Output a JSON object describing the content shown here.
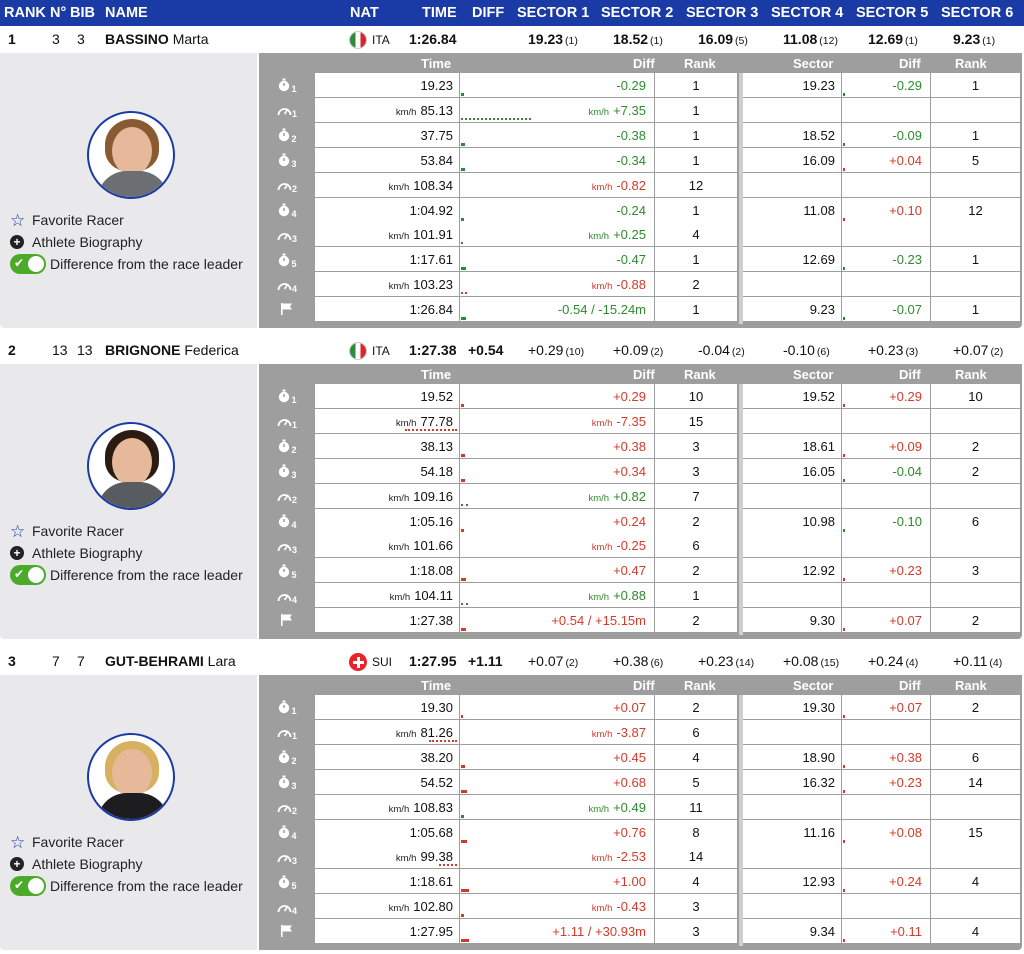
{
  "header": {
    "rank": "RANK",
    "no": "N°",
    "bib": "BIB",
    "name": "NAME",
    "nat": "NAT",
    "time": "TIME",
    "diff": "DIFF",
    "s1": "SECTOR 1",
    "s2": "SECTOR 2",
    "s3": "SECTOR 3",
    "s4": "SECTOR 4",
    "s5": "SECTOR 5",
    "s6": "SECTOR 6"
  },
  "detail_header": {
    "time": "Time",
    "diff": "Diff",
    "rank": "Rank",
    "sector": "Sector",
    "diff2": "Diff",
    "rank2": "Rank"
  },
  "links": {
    "favorite": "Favorite Racer",
    "bio": "Athlete Biography",
    "diff_toggle": "Difference from the race leader"
  },
  "units": {
    "speed": "km/h"
  },
  "colors": {
    "header_bg": "#1a3aa5",
    "positive": "#2e8b2e",
    "negative": "#d43a2a",
    "toggle": "#4caa2a"
  },
  "athletes": [
    {
      "rank": "1",
      "no": "3",
      "bib": "3",
      "last": "BASSINO",
      "first": "Marta",
      "nat": "ITA",
      "flag": "ita",
      "time": "1:26.84",
      "diff": "",
      "sectors": [
        {
          "v": "19.23",
          "r": "(1)"
        },
        {
          "v": "18.52",
          "r": "(1)"
        },
        {
          "v": "16.09",
          "r": "(5)"
        },
        {
          "v": "11.08",
          "r": "(12)"
        },
        {
          "v": "12.69",
          "r": "(1)"
        },
        {
          "v": "9.23",
          "r": "(1)"
        }
      ],
      "photo": {
        "hair": "#8a5a32",
        "body": "#6b6e73"
      },
      "rows": [
        {
          "icon": "stopwatch",
          "sub": "1",
          "time": "19.23",
          "diff": "-0.29",
          "rank": "1",
          "sector": "19.23",
          "sdiff": "-0.29",
          "srank": "1",
          "bar": "g",
          "bw": 3
        },
        {
          "icon": "speed",
          "sub": "1",
          "time": "85.13",
          "diff": "+7.35",
          "rank": "1",
          "speed": true,
          "bar": "g",
          "bw": 70,
          "dotted": true
        },
        {
          "icon": "stopwatch",
          "sub": "2",
          "time": "37.75",
          "diff": "-0.38",
          "rank": "1",
          "sector": "18.52",
          "sdiff": "-0.09",
          "srank": "1",
          "bar": "g",
          "bw": 4
        },
        {
          "icon": "stopwatch",
          "sub": "3",
          "time": "53.84",
          "diff": "-0.34",
          "rank": "1",
          "sector": "16.09",
          "sdiff": "+0.04",
          "srank": "5",
          "bar": "g",
          "bw": 4
        },
        {
          "icon": "speed",
          "sub": "2",
          "time": "108.34",
          "diff": "-0.82",
          "rank": "12",
          "speed": true,
          "bar": "r",
          "bw": 0
        },
        {
          "icon": "stopwatch",
          "sub": "4",
          "time": "1:04.92",
          "diff": "-0.24",
          "rank": "1",
          "sector": "11.08",
          "sdiff": "+0.10",
          "srank": "12",
          "bar": "g",
          "bw": 3
        },
        {
          "icon": "speed",
          "sub": "3",
          "time": "101.91",
          "diff": "+0.25",
          "rank": "4",
          "speed": true,
          "bar": "g",
          "bw": 2,
          "dotted": true
        },
        {
          "icon": "stopwatch",
          "sub": "5",
          "time": "1:17.61",
          "diff": "-0.47",
          "rank": "1",
          "sector": "12.69",
          "sdiff": "-0.23",
          "srank": "1",
          "bar": "g",
          "bw": 5
        },
        {
          "icon": "speed",
          "sub": "4",
          "time": "103.23",
          "diff": "-0.88",
          "rank": "2",
          "speed": true,
          "bar": "r",
          "bw": 6,
          "dotted": true
        },
        {
          "icon": "finish",
          "sub": "",
          "time": "1:26.84",
          "diff": "-0.54 / -15.24m",
          "rank": "1",
          "sector": "9.23",
          "sdiff": "-0.07",
          "srank": "1",
          "bar": "g",
          "bw": 5
        }
      ]
    },
    {
      "rank": "2",
      "no": "13",
      "bib": "13",
      "last": "BRIGNONE",
      "first": "Federica",
      "nat": "ITA",
      "flag": "ita",
      "time": "1:27.38",
      "diff": "+0.54",
      "sectors": [
        {
          "v": "+0.29",
          "r": "(10)"
        },
        {
          "v": "+0.09",
          "r": "(2)"
        },
        {
          "v": "-0.04",
          "r": "(2)"
        },
        {
          "v": "-0.10",
          "r": "(6)"
        },
        {
          "v": "+0.23",
          "r": "(3)"
        },
        {
          "v": "+0.07",
          "r": "(2)"
        }
      ],
      "photo": {
        "hair": "#2a1c12",
        "body": "#585b60"
      },
      "rows": [
        {
          "icon": "stopwatch",
          "sub": "1",
          "time": "19.52",
          "diff": "+0.29",
          "rank": "10",
          "sector": "19.52",
          "sdiff": "+0.29",
          "srank": "10",
          "bar": "r",
          "bw": 3
        },
        {
          "icon": "speed",
          "sub": "1",
          "time": "77.78",
          "diff": "-7.35",
          "rank": "15",
          "speed": true,
          "bar": "r",
          "bw": 52,
          "dotted": true,
          "left": true
        },
        {
          "icon": "stopwatch",
          "sub": "2",
          "time": "38.13",
          "diff": "+0.38",
          "rank": "3",
          "sector": "18.61",
          "sdiff": "+0.09",
          "srank": "2",
          "bar": "r",
          "bw": 4
        },
        {
          "icon": "stopwatch",
          "sub": "3",
          "time": "54.18",
          "diff": "+0.34",
          "rank": "3",
          "sector": "16.05",
          "sdiff": "-0.04",
          "srank": "2",
          "bar": "r",
          "bw": 4
        },
        {
          "icon": "speed",
          "sub": "2",
          "time": "109.16",
          "diff": "+0.82",
          "rank": "7",
          "speed": true,
          "bar": "g",
          "bw": 7,
          "dotted": true
        },
        {
          "icon": "stopwatch",
          "sub": "4",
          "time": "1:05.16",
          "diff": "+0.24",
          "rank": "2",
          "sector": "10.98",
          "sdiff": "-0.10",
          "srank": "6",
          "bar": "r",
          "bw": 3
        },
        {
          "icon": "speed",
          "sub": "3",
          "time": "101.66",
          "diff": "-0.25",
          "rank": "6",
          "speed": true,
          "bar": "r",
          "bw": 0
        },
        {
          "icon": "stopwatch",
          "sub": "5",
          "time": "1:18.08",
          "diff": "+0.47",
          "rank": "2",
          "sector": "12.92",
          "sdiff": "+0.23",
          "srank": "3",
          "bar": "r",
          "bw": 5
        },
        {
          "icon": "speed",
          "sub": "4",
          "time": "104.11",
          "diff": "+0.88",
          "rank": "1",
          "speed": true,
          "bar": "g",
          "bw": 7,
          "dotted": true
        },
        {
          "icon": "finish",
          "sub": "",
          "time": "1:27.38",
          "diff": "+0.54 / +15.15m",
          "rank": "2",
          "sector": "9.30",
          "sdiff": "+0.07",
          "srank": "2",
          "bar": "r",
          "bw": 5
        }
      ]
    },
    {
      "rank": "3",
      "no": "7",
      "bib": "7",
      "last": "GUT-BEHRAMI",
      "first": "Lara",
      "nat": "SUI",
      "flag": "sui",
      "time": "1:27.95",
      "diff": "+1.11",
      "sectors": [
        {
          "v": "+0.07",
          "r": "(2)"
        },
        {
          "v": "+0.38",
          "r": "(6)"
        },
        {
          "v": "+0.23",
          "r": "(14)"
        },
        {
          "v": "+0.08",
          "r": "(15)"
        },
        {
          "v": "+0.24",
          "r": "(4)"
        },
        {
          "v": "+0.11",
          "r": "(4)"
        }
      ],
      "photo": {
        "hair": "#d7b15f",
        "body": "#1d1d1f"
      },
      "rows": [
        {
          "icon": "stopwatch",
          "sub": "1",
          "time": "19.30",
          "diff": "+0.07",
          "rank": "2",
          "sector": "19.30",
          "sdiff": "+0.07",
          "srank": "2",
          "bar": "r",
          "bw": 2
        },
        {
          "icon": "speed",
          "sub": "1",
          "time": "81.26",
          "diff": "-3.87",
          "rank": "6",
          "speed": true,
          "bar": "r",
          "bw": 28,
          "dotted": true,
          "left": true
        },
        {
          "icon": "stopwatch",
          "sub": "2",
          "time": "38.20",
          "diff": "+0.45",
          "rank": "4",
          "sector": "18.90",
          "sdiff": "+0.38",
          "srank": "6",
          "bar": "r",
          "bw": 4
        },
        {
          "icon": "stopwatch",
          "sub": "3",
          "time": "54.52",
          "diff": "+0.68",
          "rank": "5",
          "sector": "16.32",
          "sdiff": "+0.23",
          "srank": "14",
          "bar": "r",
          "bw": 6
        },
        {
          "icon": "speed",
          "sub": "2",
          "time": "108.83",
          "diff": "+0.49",
          "rank": "11",
          "speed": true,
          "bar": "g",
          "bw": 3
        },
        {
          "icon": "stopwatch",
          "sub": "4",
          "time": "1:05.68",
          "diff": "+0.76",
          "rank": "8",
          "sector": "11.16",
          "sdiff": "+0.08",
          "srank": "15",
          "bar": "r",
          "bw": 6
        },
        {
          "icon": "speed",
          "sub": "3",
          "time": "99.38",
          "diff": "-2.53",
          "rank": "14",
          "speed": true,
          "bar": "r",
          "bw": 18,
          "dotted": true,
          "left": true
        },
        {
          "icon": "stopwatch",
          "sub": "5",
          "time": "1:18.61",
          "diff": "+1.00",
          "rank": "4",
          "sector": "12.93",
          "sdiff": "+0.24",
          "srank": "4",
          "bar": "r",
          "bw": 8
        },
        {
          "icon": "speed",
          "sub": "4",
          "time": "102.80",
          "diff": "-0.43",
          "rank": "3",
          "speed": true,
          "bar": "r",
          "bw": 3
        },
        {
          "icon": "finish",
          "sub": "",
          "time": "1:27.95",
          "diff": "+1.11 / +30.93m",
          "rank": "3",
          "sector": "9.34",
          "sdiff": "+0.11",
          "srank": "4",
          "bar": "r",
          "bw": 8
        }
      ]
    }
  ]
}
